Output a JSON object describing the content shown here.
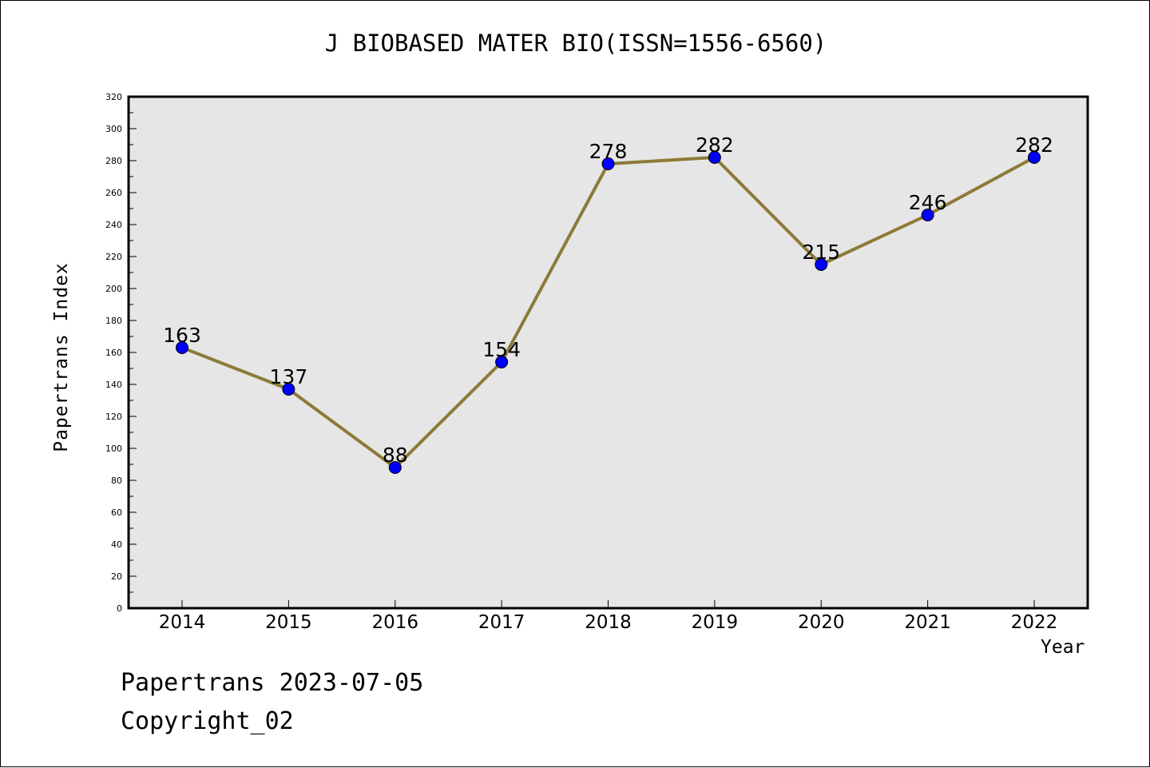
{
  "header": {
    "title": "J BIOBASED MATER BIO(ISSN=1556-6560)"
  },
  "footer": {
    "date_line": "Papertrans 2023-07-05",
    "copyright": "Copyright_02"
  },
  "colors": {
    "line": "#8c7a38",
    "marker": "#0000ff",
    "plot_bg": "#e6e6e6"
  },
  "chart_data": {
    "type": "line",
    "title": "J BIOBASED MATER BIO(ISSN=1556-6560)",
    "xlabel": "Year",
    "ylabel": "Papertrans Index",
    "categories": [
      "2014",
      "2015",
      "2016",
      "2017",
      "2018",
      "2019",
      "2020",
      "2021",
      "2022"
    ],
    "values": [
      163,
      137,
      88,
      154,
      278,
      282,
      215,
      246,
      282
    ],
    "ylim": [
      0,
      320
    ],
    "yticks": [
      0,
      20,
      40,
      60,
      80,
      100,
      120,
      140,
      160,
      180,
      200,
      220,
      240,
      260,
      280,
      300,
      320
    ],
    "grid": false,
    "legend": "none"
  }
}
